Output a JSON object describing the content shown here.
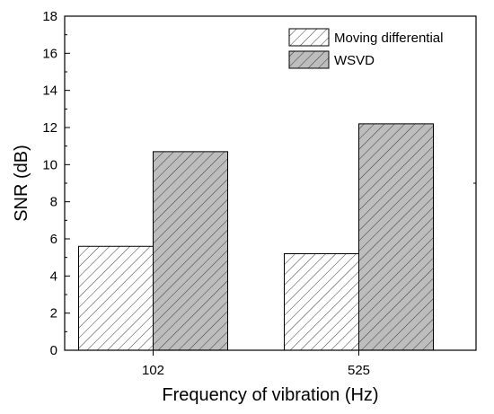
{
  "chart_data": {
    "type": "bar",
    "title": "",
    "xlabel": "Frequency of vibration (Hz)",
    "ylabel": "SNR (dB)",
    "categories": [
      "102",
      "525"
    ],
    "series": [
      {
        "name": "Moving differential",
        "values": [
          5.6,
          5.2
        ],
        "fill": "#ffffff",
        "hatch": "#3a3a3a"
      },
      {
        "name": "WSVD",
        "values": [
          10.7,
          12.2
        ],
        "fill": "#bdbdbd",
        "hatch": "#3a3a3a"
      }
    ],
    "ylim": [
      0,
      18
    ],
    "yticks": [
      "0",
      "2",
      "4",
      "6",
      "8",
      "10",
      "12",
      "14",
      "16",
      "18"
    ],
    "grid": false,
    "legend_position": "top-right"
  }
}
